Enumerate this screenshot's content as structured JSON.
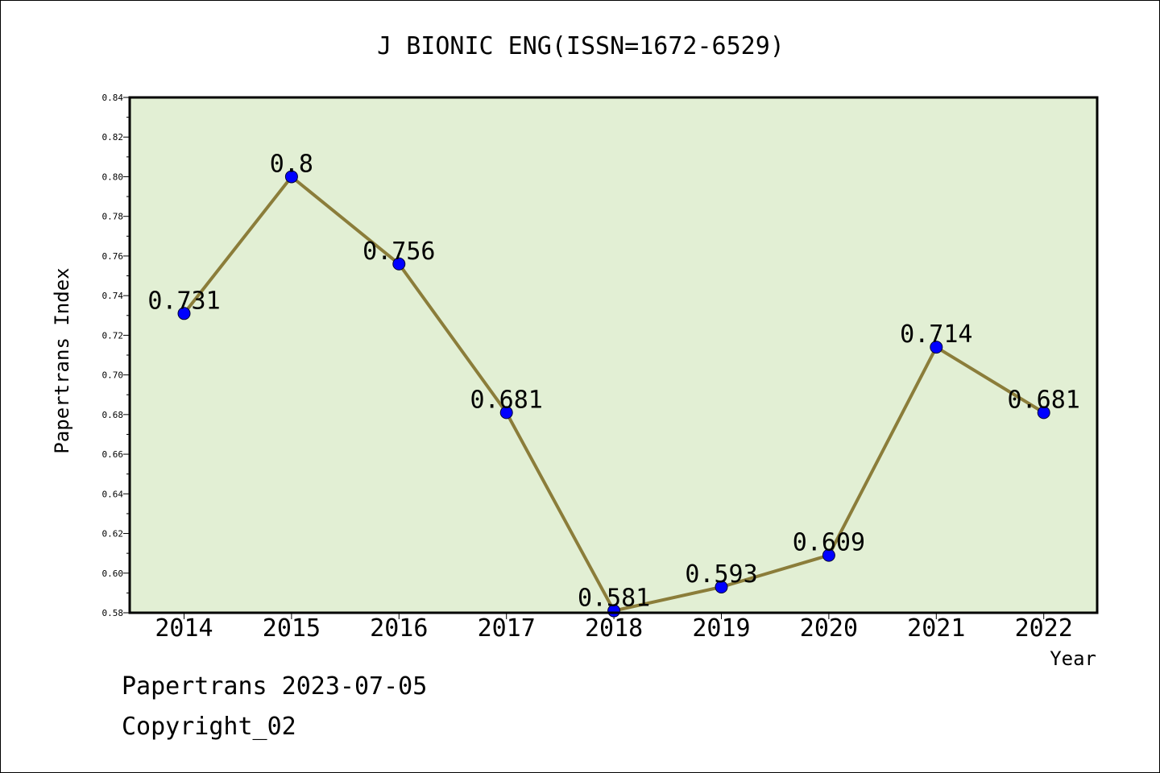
{
  "chart_data": {
    "type": "line",
    "title": "J BIONIC ENG(ISSN=1672-6529)",
    "xlabel": "Year",
    "ylabel": "Papertrans Index",
    "categories": [
      "2014",
      "2015",
      "2016",
      "2017",
      "2018",
      "2019",
      "2020",
      "2021",
      "2022"
    ],
    "series": [
      {
        "values": [
          0.731,
          0.8,
          0.756,
          0.681,
          0.581,
          0.593,
          0.609,
          0.714,
          0.681
        ]
      }
    ],
    "data_labels": [
      "0.731",
      "0.8",
      "0.756",
      "0.681",
      "0.581",
      "0.593",
      "0.609",
      "0.714",
      "0.681"
    ],
    "ylim": [
      0.58,
      0.84
    ],
    "yticks": [
      "0.58",
      "0.60",
      "0.62",
      "0.64",
      "0.66",
      "0.68",
      "0.70",
      "0.72",
      "0.74",
      "0.76",
      "0.78",
      "0.80",
      "0.82",
      "0.84"
    ],
    "grid": false,
    "legend": "none",
    "colors": {
      "plot_background": "#e2efd4",
      "line": "#8b7d3a",
      "marker": "#0000ff"
    }
  },
  "footer": {
    "line1": "Papertrans 2023-07-05",
    "line2": "Copyright_02"
  }
}
